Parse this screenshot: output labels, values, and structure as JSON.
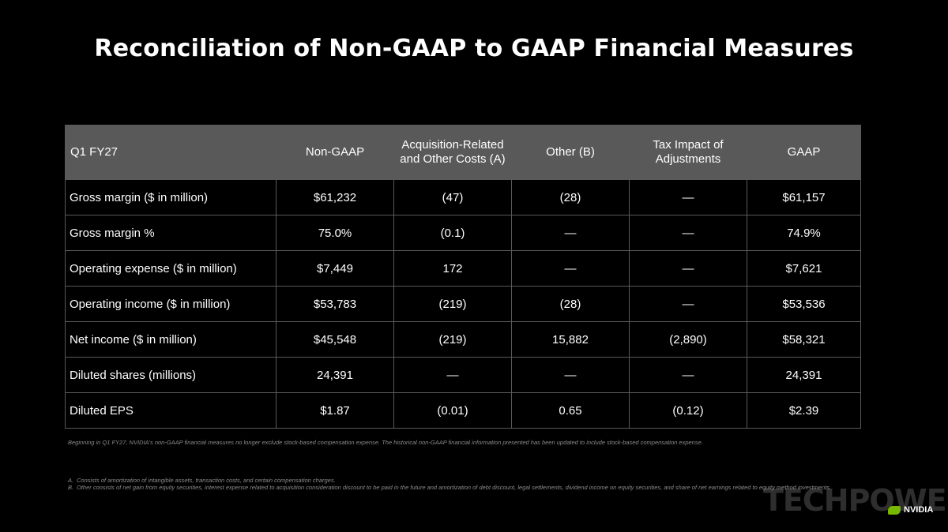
{
  "title": "Reconciliation of Non-GAAP to GAAP Financial Measures",
  "table": {
    "headers": [
      "Q1 FY27",
      "Non-GAAP",
      "Acquisition-Related and Other Costs  (A)",
      "Other (B)",
      "Tax Impact of Adjustments",
      "GAAP"
    ],
    "rows": [
      [
        "Gross margin ($ in million)",
        "$61,232",
        "(47)",
        "(28)",
        "—",
        "$61,157"
      ],
      [
        "Gross margin %",
        "75.0%",
        "(0.1)",
        "—",
        "—",
        "74.9%"
      ],
      [
        "Operating expense ($ in million)",
        "$7,449",
        "172",
        "—",
        "—",
        "$7,621"
      ],
      [
        "Operating income ($ in million)",
        "$53,783",
        "(219)",
        "(28)",
        "—",
        "$53,536"
      ],
      [
        "Net income ($ in million)",
        "$45,548",
        "(219)",
        "15,882",
        "(2,890)",
        "$58,321"
      ],
      [
        "Diluted shares (millions)",
        "24,391",
        "—",
        "—",
        "—",
        "24,391"
      ],
      [
        "Diluted EPS",
        "$1.87",
        "(0.01)",
        "0.65",
        "(0.12)",
        "$2.39"
      ]
    ]
  },
  "note": "Beginning in Q1 FY27, NVIDIA's non-GAAP financial measures no longer exclude stock-based compensation expense. The historical non-GAAP financial information presented has been updated to include stock-based compensation expense.",
  "footnotes": [
    {
      "label": "A.",
      "text": "Consists of amortization of intangible assets, transaction costs, and certain compensation charges."
    },
    {
      "label": "B.",
      "text": "Other consists of net gain from equity securities, interest expense related to acquisition consideration discount to be paid in the future and amortization of debt discount, legal settlements, dividend income on equity securities, and share of net earnings related to equity method investments."
    }
  ],
  "watermark": "TECHPOWERUP",
  "logo_text": "NVIDIA",
  "colors": {
    "background": "#000000",
    "header_fill": "#595959",
    "grid": "#5a5a5a",
    "brand_green": "#76b900"
  }
}
